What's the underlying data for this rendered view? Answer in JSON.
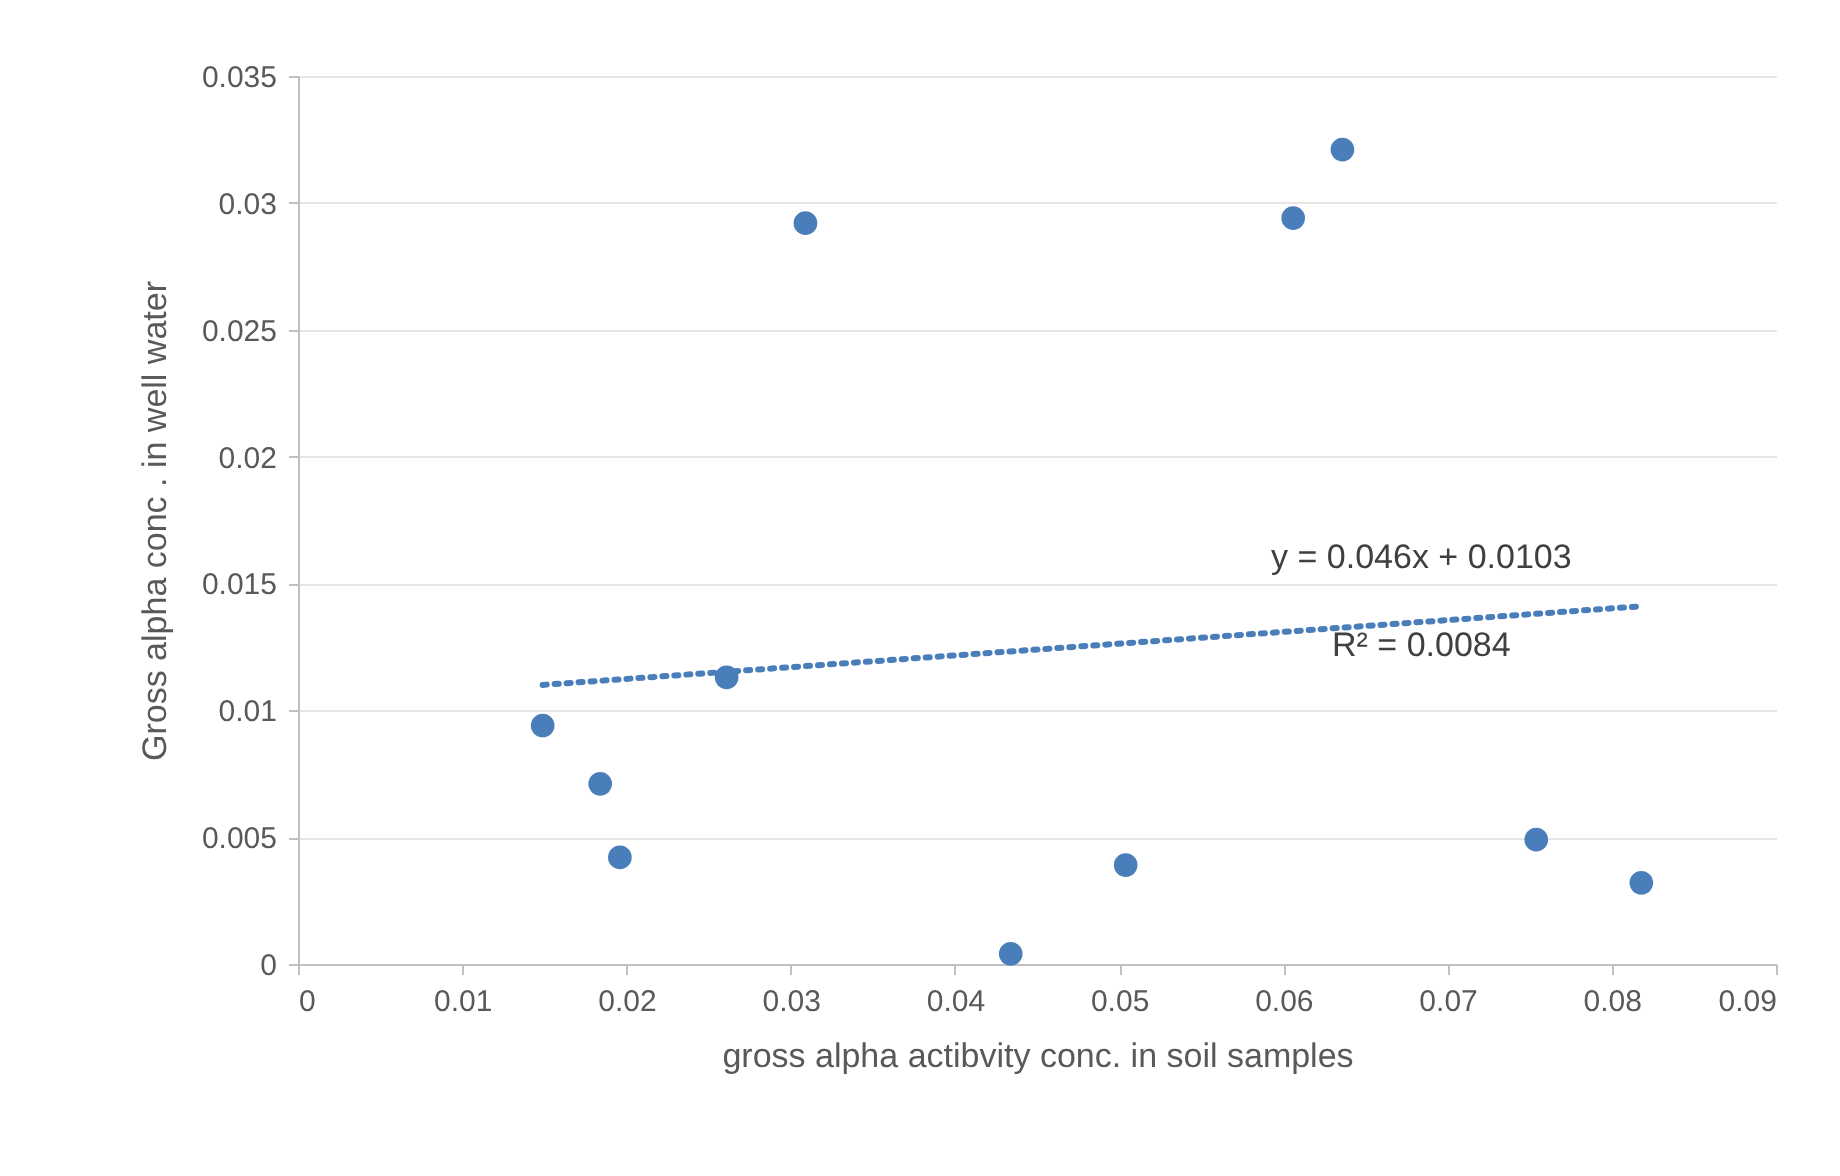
{
  "chart_data": {
    "type": "scatter",
    "xlabel": "gross alpha actibvity conc. in soil samples",
    "ylabel": "Gross alpha conc . in  well water",
    "xlim": [
      0,
      0.09
    ],
    "xticks": [
      0,
      0.01,
      0.02,
      0.03,
      0.04,
      0.05,
      0.06,
      0.07,
      0.08,
      0.09
    ],
    "ylim": [
      0,
      0.035
    ],
    "yticks": [
      0,
      0.005,
      0.01,
      0.015,
      0.02,
      0.025,
      0.03,
      0.035
    ],
    "grid": "y",
    "series": [
      {
        "marker": "circle",
        "color": "#4a7ebb",
        "x": [
          0.0149,
          0.0184,
          0.0196,
          0.0261,
          0.0309,
          0.0434,
          0.0504,
          0.0606,
          0.0636,
          0.0754,
          0.0818
        ],
        "values": [
          0.0094,
          0.0071,
          0.0042,
          0.0113,
          0.0292,
          0.0004,
          0.0039,
          0.0294,
          0.0321,
          0.0049,
          0.0032
        ]
      },
      {
        "type": "line",
        "marker": "none",
        "color": "#4a7ebb",
        "line_style": "dotted",
        "x": [
          0.0149,
          0.0818
        ],
        "values": [
          0.011,
          0.0141
        ]
      }
    ],
    "annotations": [
      "y = 0.046x + 0.0103",
      "R² = 0.0084"
    ]
  }
}
